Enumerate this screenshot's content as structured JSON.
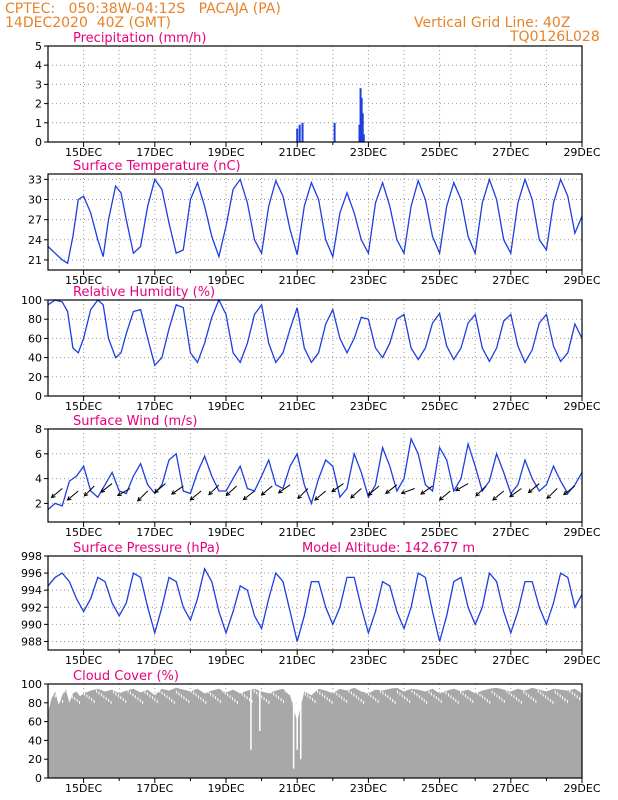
{
  "header": {
    "line1_left": "CPTEC:   050:38W-04:12S   PACAJA (PA)",
    "line2_left": "14DEC2020  40Z (GMT)",
    "line1_right": "Vertical Grid Line: 40Z",
    "line2_right": "TQ0126L028"
  },
  "colors": {
    "header": "#e8822a",
    "title": "#e6007e",
    "series": "#1f3ee0",
    "cloud": "#a8a8a8",
    "wind_arrow": "#000000"
  },
  "model_altitude": "Model Altitude: 142.677 m",
  "x_ticks": [
    "15DEC",
    "17DEC",
    "19DEC",
    "21DEC",
    "23DEC",
    "25DEC",
    "27DEC",
    "29DEC"
  ],
  "chart_data": [
    {
      "type": "bar",
      "title": "Precipitation (mm/h)",
      "ylim": [
        0,
        5
      ],
      "yticks": [
        0,
        1,
        2,
        3,
        4,
        5
      ],
      "grid": true,
      "x_range": [
        14.0,
        29.0
      ],
      "x": [
        21.0,
        21.07,
        21.15,
        22.05,
        22.75,
        22.78,
        22.81,
        22.84,
        22.87
      ],
      "values": [
        0.7,
        0.9,
        1.0,
        1.0,
        0.9,
        2.8,
        2.3,
        1.5,
        0.4
      ]
    },
    {
      "type": "line",
      "title": "Surface Temperature (nC)",
      "ylim": [
        19.5,
        33.8
      ],
      "yticks": [
        21,
        24,
        27,
        30,
        33
      ],
      "grid": true,
      "x_range": [
        14.0,
        29.0
      ],
      "x": [
        14.0,
        14.2,
        14.4,
        14.55,
        14.7,
        14.85,
        15.0,
        15.2,
        15.4,
        15.55,
        15.7,
        15.9,
        16.05,
        16.2,
        16.4,
        16.6,
        16.8,
        17.0,
        17.2,
        17.4,
        17.6,
        17.8,
        18.0,
        18.2,
        18.4,
        18.6,
        18.8,
        19.0,
        19.2,
        19.4,
        19.6,
        19.8,
        20.0,
        20.2,
        20.4,
        20.6,
        20.8,
        21.0,
        21.2,
        21.4,
        21.6,
        21.8,
        22.0,
        22.2,
        22.4,
        22.6,
        22.8,
        23.0,
        23.2,
        23.4,
        23.6,
        23.8,
        24.0,
        24.2,
        24.4,
        24.6,
        24.8,
        25.0,
        25.2,
        25.4,
        25.6,
        25.8,
        26.0,
        26.2,
        26.4,
        26.6,
        26.8,
        27.0,
        27.2,
        27.4,
        27.6,
        27.8,
        28.0,
        28.2,
        28.4,
        28.6,
        28.8,
        29.0
      ],
      "values": [
        23.0,
        22.0,
        21.0,
        20.5,
        24.5,
        30.0,
        30.5,
        28.0,
        24.0,
        21.5,
        27.0,
        32.0,
        31.0,
        27.0,
        22.0,
        23.0,
        29.0,
        33.0,
        31.5,
        26.5,
        22.0,
        22.5,
        30.0,
        32.5,
        29.0,
        24.5,
        21.5,
        26.0,
        31.5,
        33.0,
        29.5,
        24.0,
        22.0,
        29.0,
        32.8,
        30.5,
        25.5,
        21.8,
        29.0,
        32.5,
        30.0,
        24.0,
        21.5,
        28.0,
        31.0,
        28.0,
        24.0,
        22.0,
        29.5,
        32.5,
        29.0,
        24.0,
        22.0,
        29.0,
        32.8,
        30.0,
        24.5,
        22.0,
        29.0,
        32.5,
        30.0,
        24.5,
        22.0,
        29.5,
        33.0,
        30.0,
        24.0,
        22.0,
        29.5,
        33.0,
        30.0,
        24.0,
        22.5,
        29.5,
        33.0,
        30.5,
        25.0,
        27.5
      ]
    },
    {
      "type": "line",
      "title": "Relative Humidity (%)",
      "ylim": [
        0,
        100
      ],
      "yticks": [
        0,
        20,
        40,
        60,
        80,
        100
      ],
      "grid": true,
      "x_range": [
        14.0,
        29.0
      ],
      "x": [
        14.0,
        14.2,
        14.4,
        14.55,
        14.7,
        14.85,
        15.0,
        15.2,
        15.4,
        15.55,
        15.7,
        15.9,
        16.05,
        16.2,
        16.4,
        16.6,
        16.8,
        17.0,
        17.2,
        17.4,
        17.6,
        17.8,
        18.0,
        18.2,
        18.4,
        18.6,
        18.8,
        19.0,
        19.2,
        19.4,
        19.6,
        19.8,
        20.0,
        20.2,
        20.4,
        20.6,
        20.8,
        21.0,
        21.2,
        21.4,
        21.6,
        21.8,
        22.0,
        22.2,
        22.4,
        22.6,
        22.8,
        23.0,
        23.2,
        23.4,
        23.6,
        23.8,
        24.0,
        24.2,
        24.4,
        24.6,
        24.8,
        25.0,
        25.2,
        25.4,
        25.6,
        25.8,
        26.0,
        26.2,
        26.4,
        26.6,
        26.8,
        27.0,
        27.2,
        27.4,
        27.6,
        27.8,
        28.0,
        28.2,
        28.4,
        28.6,
        28.8,
        29.0
      ],
      "values": [
        95.0,
        100.0,
        98.0,
        88.0,
        50.0,
        45.0,
        60.0,
        90.0,
        100.0,
        95.0,
        60.0,
        40.0,
        45.0,
        65.0,
        88.0,
        90.0,
        60.0,
        32.0,
        40.0,
        70.0,
        95.0,
        92.0,
        45.0,
        35.0,
        55.0,
        82.0,
        100.0,
        85.0,
        45.0,
        35.0,
        55.0,
        85.0,
        95.0,
        55.0,
        35.0,
        45.0,
        70.0,
        92.0,
        50.0,
        35.0,
        45.0,
        75.0,
        90.0,
        60.0,
        45.0,
        60.0,
        82.0,
        80.0,
        50.0,
        40.0,
        55.0,
        80.0,
        85.0,
        50.0,
        38.0,
        50.0,
        76.0,
        86.0,
        52.0,
        38.0,
        50.0,
        76.0,
        85.0,
        50.0,
        36.0,
        50.0,
        78.0,
        85.0,
        52.0,
        35.0,
        48.0,
        76.0,
        85.0,
        52.0,
        36.0,
        45.0,
        75.0,
        60.0
      ]
    },
    {
      "type": "line",
      "title": "Surface Wind (m/s)",
      "ylim": [
        0.5,
        8
      ],
      "yticks": [
        2,
        4,
        6,
        8
      ],
      "grid": true,
      "x_range": [
        14.0,
        29.0
      ],
      "x": [
        14.0,
        14.2,
        14.4,
        14.6,
        14.8,
        15.0,
        15.2,
        15.4,
        15.6,
        15.8,
        16.0,
        16.2,
        16.4,
        16.6,
        16.8,
        17.0,
        17.2,
        17.4,
        17.6,
        17.8,
        18.0,
        18.2,
        18.4,
        18.6,
        18.8,
        19.0,
        19.2,
        19.4,
        19.6,
        19.8,
        20.0,
        20.2,
        20.4,
        20.6,
        20.8,
        21.0,
        21.2,
        21.4,
        21.6,
        21.8,
        22.0,
        22.2,
        22.4,
        22.6,
        22.8,
        23.0,
        23.2,
        23.4,
        23.6,
        23.8,
        24.0,
        24.2,
        24.4,
        24.6,
        24.8,
        25.0,
        25.2,
        25.4,
        25.6,
        25.8,
        26.0,
        26.2,
        26.4,
        26.6,
        26.8,
        27.0,
        27.2,
        27.4,
        27.6,
        27.8,
        28.0,
        28.2,
        28.4,
        28.6,
        28.8,
        29.0
      ],
      "values": [
        1.5,
        2.0,
        1.8,
        3.8,
        4.2,
        5.0,
        3.0,
        2.5,
        3.5,
        4.5,
        3.0,
        2.8,
        4.2,
        5.2,
        3.5,
        2.8,
        3.5,
        5.5,
        6.0,
        3.0,
        2.8,
        4.5,
        5.8,
        4.2,
        3.0,
        3.0,
        4.0,
        5.0,
        3.2,
        3.0,
        4.2,
        5.5,
        3.5,
        3.2,
        5.0,
        6.0,
        3.5,
        2.0,
        4.0,
        5.5,
        5.0,
        2.5,
        3.2,
        6.0,
        4.5,
        2.5,
        3.5,
        6.5,
        5.0,
        3.0,
        4.0,
        7.2,
        6.0,
        3.5,
        3.0,
        6.5,
        5.5,
        3.0,
        4.0,
        6.8,
        5.0,
        3.0,
        3.8,
        6.0,
        4.5,
        2.8,
        3.5,
        5.5,
        4.0,
        3.0,
        3.5,
        5.0,
        3.8,
        2.8,
        3.5,
        4.5
      ],
      "wind_arrows": {
        "x": [
          14.4,
          14.85,
          15.3,
          15.8,
          16.3,
          16.8,
          17.3,
          17.8,
          18.3,
          18.8,
          19.3,
          19.8,
          20.3,
          20.8,
          21.3,
          21.8,
          22.3,
          22.8,
          23.3,
          23.8,
          24.3,
          24.8,
          25.3,
          25.8,
          26.3,
          26.8,
          27.3,
          27.8,
          28.3,
          28.8
        ],
        "values": [
          3.2,
          3.0,
          3.4,
          3.6,
          3.2,
          3.0,
          3.6,
          3.4,
          3.0,
          3.5,
          3.4,
          3.0,
          3.4,
          3.5,
          3.2,
          3.0,
          3.6,
          3.2,
          3.4,
          3.5,
          3.2,
          3.4,
          3.0,
          3.6,
          3.4,
          3.0,
          3.2,
          3.6,
          3.2,
          3.4
        ],
        "angles_deg": [
          40,
          40,
          45,
          38,
          30,
          45,
          40,
          35,
          40,
          45,
          42,
          38,
          40,
          35,
          45,
          40,
          35,
          42,
          40,
          38,
          20,
          35,
          40,
          30,
          45,
          40,
          35,
          40,
          45,
          38
        ]
      }
    },
    {
      "type": "line",
      "title": "Surface Pressure (hPa)",
      "ylim": [
        987,
        998
      ],
      "yticks": [
        988,
        990,
        992,
        994,
        996,
        998
      ],
      "grid": true,
      "x_range": [
        14.0,
        29.0
      ],
      "x": [
        14.0,
        14.2,
        14.4,
        14.6,
        14.8,
        15.0,
        15.2,
        15.4,
        15.6,
        15.8,
        16.0,
        16.2,
        16.4,
        16.6,
        16.8,
        17.0,
        17.2,
        17.4,
        17.6,
        17.8,
        18.0,
        18.2,
        18.4,
        18.6,
        18.8,
        19.0,
        19.2,
        19.4,
        19.6,
        19.8,
        20.0,
        20.2,
        20.4,
        20.6,
        20.8,
        21.0,
        21.2,
        21.4,
        21.6,
        21.8,
        22.0,
        22.2,
        22.4,
        22.6,
        22.8,
        23.0,
        23.2,
        23.4,
        23.6,
        23.8,
        24.0,
        24.2,
        24.4,
        24.6,
        24.8,
        25.0,
        25.2,
        25.4,
        25.6,
        25.8,
        26.0,
        26.2,
        26.4,
        26.6,
        26.8,
        27.0,
        27.2,
        27.4,
        27.6,
        27.8,
        28.0,
        28.2,
        28.4,
        28.6,
        28.8,
        29.0
      ],
      "values": [
        994.5,
        995.5,
        996.0,
        995.0,
        993.0,
        991.5,
        993.0,
        995.5,
        995.0,
        992.5,
        991.0,
        992.5,
        996.0,
        995.5,
        992.0,
        989.0,
        992.0,
        995.5,
        995.0,
        992.0,
        990.5,
        993.0,
        996.5,
        995.0,
        991.5,
        989.0,
        991.5,
        994.5,
        994.0,
        991.0,
        989.5,
        993.0,
        996.0,
        995.0,
        991.5,
        988.0,
        991.0,
        995.0,
        995.0,
        992.0,
        990.0,
        992.0,
        995.5,
        995.5,
        992.0,
        989.0,
        991.5,
        995.0,
        994.5,
        991.5,
        989.5,
        992.0,
        996.0,
        995.5,
        991.5,
        988.0,
        991.0,
        995.0,
        995.5,
        992.0,
        990.0,
        992.0,
        996.0,
        995.0,
        991.5,
        989.0,
        991.5,
        995.0,
        995.0,
        992.0,
        990.0,
        992.5,
        996.0,
        995.5,
        992.0,
        993.5
      ]
    },
    {
      "type": "area",
      "title": "Cloud Cover (%)",
      "ylim": [
        0,
        100
      ],
      "yticks": [
        0,
        20,
        40,
        60,
        80,
        100
      ],
      "grid": true,
      "x_range": [
        14.0,
        29.0
      ],
      "x": [
        14.0,
        14.1,
        14.2,
        14.3,
        14.4,
        14.5,
        14.6,
        14.7,
        14.8,
        14.9,
        15.0,
        15.2,
        15.4,
        15.6,
        15.8,
        16.0,
        16.2,
        16.4,
        16.6,
        16.8,
        17.0,
        17.2,
        17.4,
        17.6,
        17.8,
        18.0,
        18.2,
        18.4,
        18.6,
        18.8,
        19.0,
        19.2,
        19.4,
        19.6,
        19.8,
        20.0,
        20.2,
        20.4,
        20.6,
        20.8,
        21.0,
        21.2,
        21.4,
        21.6,
        21.8,
        22.0,
        22.2,
        22.4,
        22.6,
        22.8,
        23.0,
        23.2,
        23.4,
        23.6,
        23.8,
        24.0,
        24.2,
        24.4,
        24.6,
        24.8,
        25.0,
        25.2,
        25.4,
        25.6,
        25.8,
        26.0,
        26.2,
        26.4,
        26.6,
        26.8,
        27.0,
        27.2,
        27.4,
        27.6,
        27.8,
        28.0,
        28.2,
        28.4,
        28.6,
        28.8,
        29.0
      ],
      "values": [
        70,
        85,
        92,
        78,
        88,
        95,
        80,
        90,
        92,
        87,
        90,
        93,
        95,
        92,
        94,
        90,
        93,
        95,
        91,
        94,
        88,
        95,
        93,
        96,
        94,
        92,
        95,
        90,
        93,
        95,
        91,
        94,
        90,
        93,
        95,
        92,
        90,
        93,
        95,
        88,
        60,
        92,
        88,
        95,
        93,
        90,
        95,
        93,
        96,
        92,
        90,
        94,
        93,
        95,
        96,
        92,
        95,
        94,
        92,
        95,
        90,
        93,
        95,
        92,
        94,
        90,
        93,
        95,
        96,
        94,
        92,
        95,
        93,
        96,
        94,
        92,
        95,
        94,
        93,
        95,
        90
      ],
      "dips": [
        [
          19.7,
          30
        ],
        [
          19.95,
          50
        ],
        [
          20.9,
          10
        ],
        [
          21.0,
          30
        ],
        [
          21.1,
          20
        ]
      ]
    }
  ]
}
